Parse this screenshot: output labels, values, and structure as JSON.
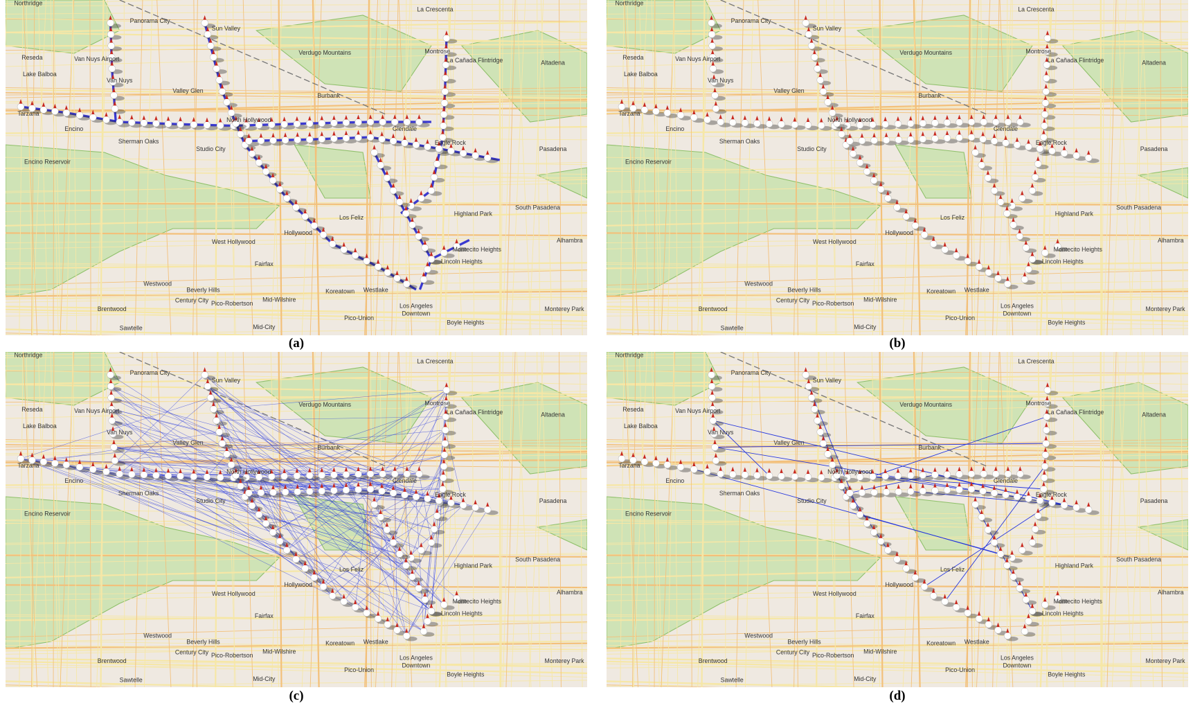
{
  "panels": [
    {
      "label": "(a)"
    },
    {
      "label": "(b)"
    },
    {
      "label": "(c)"
    },
    {
      "label": "(d)"
    }
  ],
  "places": [
    "Northridge",
    "Panorama City",
    "Sun Valley",
    "La Crescenta",
    "Montrose",
    "La Cañada Flintridge",
    "Verdugo Mountains",
    "Van Nuys Airport",
    "Reseda",
    "Lake Balboa",
    "Van Nuys",
    "Valley Glen",
    "Burbank",
    "Altadena",
    "Tarzana",
    "Encino",
    "Sherman Oaks",
    "Studio City",
    "North Hollywood",
    "Glendale",
    "Eagle Rock",
    "Pasadena",
    "Encino Reservoir",
    "South Pasadena",
    "Highland Park",
    "Los Feliz",
    "Hollywood",
    "West Hollywood",
    "Montecito Heights",
    "Alhambra",
    "Fairfax",
    "Lincoln Heights",
    "Westwood",
    "Beverly Hills",
    "Koreatown",
    "Westlake",
    "Century City",
    "Pico-Robertson",
    "Mid-Wilshire",
    "Los Angeles",
    "Downtown",
    "Monterey Park",
    "Brentwood",
    "Sawtelle",
    "Mid-City",
    "Pico-Union",
    "Boyle Heights"
  ]
}
